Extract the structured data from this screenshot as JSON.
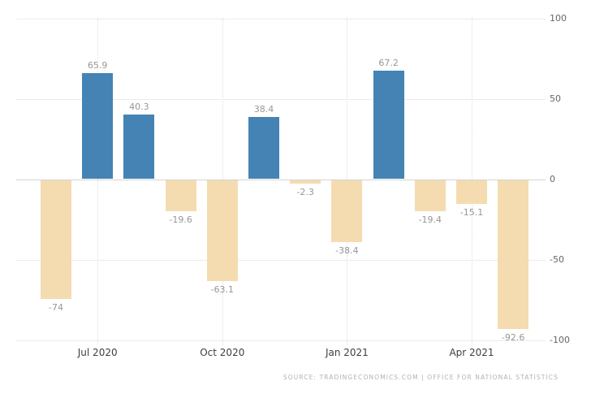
{
  "chart_data": {
    "type": "bar",
    "title": "",
    "categories": [
      "",
      "Jul 2020",
      "",
      "",
      "Oct 2020",
      "",
      "",
      "Jan 2021",
      "",
      "",
      "Apr 2021",
      ""
    ],
    "values": [
      -74,
      65.9,
      40.3,
      -19.6,
      -63.1,
      38.4,
      -2.3,
      -38.4,
      67.2,
      -19.4,
      -15.1,
      -92.6
    ],
    "labels": [
      "-74",
      "65.9",
      "40.3",
      "-19.6",
      "-63.1",
      "38.4",
      "-2.3",
      "-38.4",
      "67.2",
      "-19.4",
      "-15.1",
      "-92.6"
    ],
    "x_tick_labels": [
      "Jul 2020",
      "Oct 2020",
      "Jan 2021",
      "Apr 2021"
    ],
    "y_ticks": [
      100,
      50,
      0,
      -50,
      -100
    ],
    "ylim": [
      -100,
      100
    ],
    "y_axis_side": "right",
    "grid": true,
    "legend": false,
    "positive_color": "#4583b4",
    "negative_color": "#f4dcb0",
    "value_label_color": "#969696",
    "axis_label_color": "#666666"
  },
  "footer": {
    "source_text": "SOURCE: TRADINGECONOMICS.COM | OFFICE FOR NATIONAL STATISTICS"
  }
}
